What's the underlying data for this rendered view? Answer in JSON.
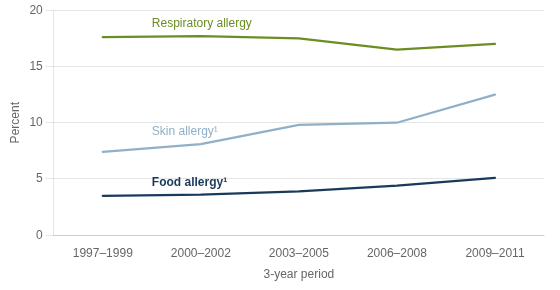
{
  "chart_data": {
    "type": "line",
    "categories": [
      "1997–1999",
      "2000–2002",
      "2003–2005",
      "2006–2008",
      "2009–2011"
    ],
    "series": [
      {
        "name": "Respiratory allergy",
        "color": "#6b8e23",
        "values": [
          17.6,
          17.7,
          17.5,
          16.5,
          17.0
        ]
      },
      {
        "name": "Skin allergy¹",
        "color": "#8fb0c8",
        "values": [
          7.4,
          8.1,
          9.8,
          10.0,
          12.5
        ]
      },
      {
        "name": "Food allergy¹",
        "color": "#1a3a5c",
        "values": [
          3.5,
          3.6,
          3.9,
          4.4,
          5.1
        ]
      }
    ],
    "xlabel": "3-year period",
    "ylabel": "Percent",
    "ylim": [
      0,
      20
    ],
    "yticks": [
      0,
      5,
      10,
      15,
      20
    ],
    "grid": true
  }
}
